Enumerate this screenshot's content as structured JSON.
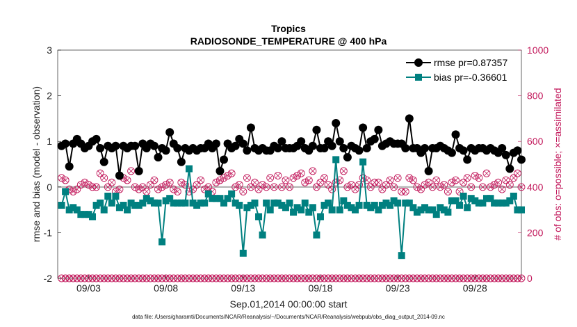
{
  "chart_data": {
    "type": "line",
    "title": "Tropics",
    "subtitle": "RADIOSONDE_TEMPERATURE @ 400 hPa",
    "xlabel": "Sep.01,2014 00:00:00 start",
    "ylabel": "rmse and bias (model - observation)",
    "ylabel_right": "# of obs: o=possible; ×=assimilated",
    "ylim": [
      -2,
      3
    ],
    "ylim_right": [
      0,
      1000
    ],
    "xlim": [
      1.0,
      31.0
    ],
    "yticks": [
      -2,
      -1,
      0,
      1,
      2,
      3
    ],
    "yticks_right": [
      0,
      200,
      400,
      600,
      800,
      1000
    ],
    "xtick_labels": [
      "09/03",
      "09/08",
      "09/13",
      "09/18",
      "09/23",
      "09/28"
    ],
    "xtick_values": [
      3,
      8,
      13,
      18,
      23,
      28
    ],
    "legend": [
      {
        "name": "rmse pr=0.87357",
        "color": "#000000",
        "marker": "circle"
      },
      {
        "name": "bias pr=-0.36601",
        "color": "#008080",
        "marker": "square"
      }
    ],
    "footer": "data file: /Users/gharamti/Documents/NCAR/Reanalysis/~/Documents/NCAR/Reanalysis/webpub/obs_diag_output_2014-09.nc",
    "x": [
      1.25,
      1.5,
      1.75,
      2.0,
      2.25,
      2.5,
      2.75,
      3.0,
      3.25,
      3.5,
      3.75,
      4.0,
      4.25,
      4.5,
      4.75,
      5.0,
      5.25,
      5.5,
      5.75,
      6.0,
      6.25,
      6.5,
      6.75,
      7.0,
      7.25,
      7.5,
      7.75,
      8.0,
      8.25,
      8.5,
      8.75,
      9.0,
      9.25,
      9.5,
      9.75,
      10.0,
      10.25,
      10.5,
      10.75,
      11.0,
      11.25,
      11.5,
      11.75,
      12.0,
      12.25,
      12.5,
      12.75,
      13.0,
      13.25,
      13.5,
      13.75,
      14.0,
      14.25,
      14.5,
      14.75,
      15.0,
      15.25,
      15.5,
      15.75,
      16.0,
      16.25,
      16.5,
      16.75,
      17.0,
      17.25,
      17.5,
      17.75,
      18.0,
      18.25,
      18.5,
      18.75,
      19.0,
      19.25,
      19.5,
      19.75,
      20.0,
      20.25,
      20.5,
      20.75,
      21.0,
      21.25,
      21.5,
      21.75,
      22.0,
      22.25,
      22.5,
      22.75,
      23.0,
      23.25,
      23.5,
      23.75,
      24.0,
      24.25,
      24.5,
      24.75,
      25.0,
      25.25,
      25.5,
      25.75,
      26.0,
      26.25,
      26.5,
      26.75,
      27.0,
      27.25,
      27.5,
      27.75,
      28.0,
      28.25,
      28.5,
      28.75,
      29.0,
      29.25,
      29.5,
      29.75,
      30.0,
      30.25,
      30.5,
      30.75,
      31.0
    ],
    "series": [
      {
        "name": "rmse pr=0.87357",
        "color": "#000000",
        "values": [
          0.9,
          0.95,
          0.45,
          0.95,
          1.05,
          0.95,
          0.85,
          0.9,
          1.0,
          1.05,
          0.85,
          0.55,
          0.9,
          0.85,
          0.9,
          0.25,
          0.9,
          0.85,
          0.9,
          0.9,
          0.35,
          0.95,
          0.85,
          0.95,
          0.9,
          0.65,
          0.85,
          0.8,
          1.2,
          0.95,
          0.85,
          0.55,
          0.85,
          0.8,
          0.85,
          0.8,
          0.85,
          0.85,
          0.95,
          0.85,
          0.95,
          0.35,
          0.6,
          0.95,
          0.85,
          0.9,
          1.05,
          0.95,
          0.8,
          1.3,
          0.85,
          0.8,
          0.85,
          0.8,
          0.8,
          0.9,
          0.85,
          1.0,
          0.85,
          0.85,
          0.85,
          0.9,
          1.0,
          0.85,
          0.8,
          0.9,
          1.25,
          0.85,
          0.85,
          1.0,
          0.9,
          1.4,
          1.0,
          0.85,
          0.65,
          0.9,
          0.85,
          0.8,
          1.3,
          0.85,
          1.0,
          1.05,
          1.25,
          0.9,
          0.95,
          1.0,
          0.95,
          0.95,
          0.95,
          0.85,
          1.5,
          0.85,
          0.85,
          0.75,
          0.85,
          0.35,
          0.85,
          0.85,
          0.9,
          0.85,
          0.8,
          0.75,
          1.15,
          0.85,
          0.8,
          0.6,
          0.85,
          0.8,
          0.85,
          0.85,
          0.8,
          0.85,
          0.8,
          0.75,
          0.85,
          0.7,
          0.4,
          0.75,
          0.8,
          0.6
        ]
      },
      {
        "name": "bias pr=-0.36601",
        "color": "#008080",
        "values": [
          -0.4,
          -0.1,
          -0.5,
          -0.45,
          -0.5,
          -0.6,
          -0.6,
          -0.6,
          -0.65,
          -0.4,
          -0.35,
          -0.5,
          -0.2,
          -0.35,
          -0.2,
          -0.45,
          -0.4,
          -0.5,
          -0.35,
          -0.4,
          -0.4,
          -0.35,
          -0.25,
          -0.3,
          -0.35,
          -0.35,
          -1.2,
          -0.3,
          -0.25,
          -0.35,
          -0.35,
          -0.35,
          -0.35,
          0.4,
          -0.35,
          -0.4,
          -0.35,
          -0.35,
          -0.15,
          -0.25,
          -0.25,
          -0.25,
          -0.35,
          -0.25,
          -0.15,
          -0.35,
          -0.4,
          -1.45,
          -0.45,
          -0.4,
          -0.35,
          -0.65,
          -1.05,
          -0.35,
          -0.5,
          -0.35,
          -0.35,
          -0.4,
          -0.45,
          -0.35,
          -0.55,
          -0.45,
          -0.5,
          -0.35,
          -0.55,
          -0.45,
          -1.05,
          -0.65,
          -0.4,
          -0.35,
          -0.5,
          0.6,
          -0.5,
          -0.3,
          -0.4,
          -0.45,
          -0.5,
          -0.4,
          0.55,
          -0.4,
          -0.45,
          -0.4,
          -0.5,
          -0.4,
          -0.35,
          -0.4,
          -0.3,
          -0.35,
          -1.5,
          -0.35,
          -0.35,
          -0.45,
          -0.55,
          -0.5,
          -0.45,
          -0.5,
          -0.5,
          -0.6,
          -0.45,
          -0.5,
          -0.55,
          -0.3,
          -0.3,
          -0.4,
          -0.2,
          -0.45,
          -0.25,
          -0.3,
          -0.35,
          -0.35,
          -0.25,
          -0.25,
          -0.35,
          -0.35,
          -0.35,
          -0.35,
          -0.3,
          -0.2,
          -0.5,
          -0.5
        ]
      },
      {
        "name": "possible obs",
        "color": "#c2185b",
        "axis": "right",
        "values": [
          440,
          430,
          390,
          380,
          390,
          410,
          420,
          410,
          400,
          400,
          460,
          440,
          400,
          420,
          380,
          390,
          440,
          430,
          470,
          400,
          390,
          400,
          380,
          410,
          430,
          390,
          400,
          410,
          420,
          390,
          380,
          420,
          410,
          380,
          390,
          410,
          430,
          390,
          400,
          380,
          420,
          430,
          440,
          450,
          460,
          400,
          410,
          380,
          440,
          400,
          420,
          390,
          410,
          400,
          440,
          400,
          450,
          400,
          430,
          400,
          440,
          450,
          460,
          420,
          430,
          470,
          400,
          420,
          440,
          410,
          390,
          420,
          430,
          470,
          400,
          410,
          390,
          410,
          440,
          430,
          400,
          420,
          420,
          390,
          410,
          430,
          400,
          440,
          380,
          380,
          440,
          430,
          400,
          390,
          410,
          420,
          400,
          430,
          400,
          410,
          380,
          420,
          430,
          380,
          420,
          440,
          400,
          450,
          440,
          400,
          460,
          400,
          410,
          420,
          390,
          430,
          410,
          440,
          460,
          400
        ],
        "assimilated": [
          0,
          0,
          0,
          0,
          0,
          0,
          0,
          0,
          0,
          0,
          0,
          0,
          0,
          0,
          0,
          0,
          0,
          0,
          0,
          0,
          0,
          0,
          0,
          0,
          0,
          0,
          0,
          0,
          0,
          0,
          0,
          0,
          0,
          0,
          0,
          0,
          0,
          0,
          0,
          0,
          0,
          0,
          0,
          0,
          0,
          0,
          0,
          0,
          0,
          0,
          0,
          0,
          0,
          0,
          0,
          0,
          0,
          0,
          0,
          0,
          0,
          0,
          0,
          0,
          0,
          0,
          0,
          0,
          0,
          0,
          0,
          0,
          0,
          0,
          0,
          0,
          0,
          0,
          0,
          0,
          0,
          0,
          0,
          0,
          0,
          0,
          0,
          0,
          0,
          0,
          0,
          0,
          0,
          0,
          0,
          0,
          0,
          0,
          0,
          0,
          0,
          0,
          0,
          0,
          0,
          0,
          0,
          0,
          0,
          0,
          0,
          0,
          0,
          0,
          0,
          0,
          0,
          0,
          0,
          0
        ]
      }
    ]
  }
}
